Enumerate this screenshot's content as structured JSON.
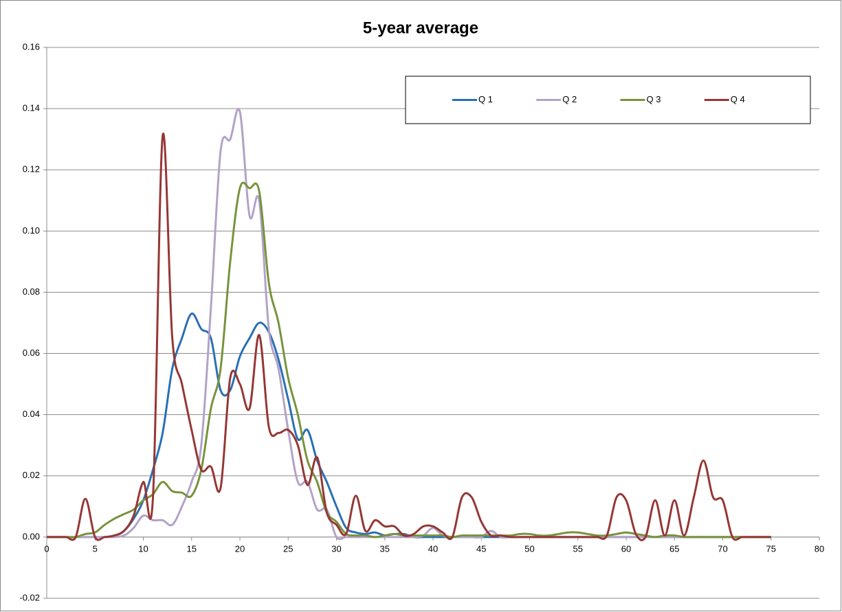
{
  "chart_data": {
    "type": "line",
    "title": "5-year average",
    "x": [
      0,
      1,
      2,
      3,
      4,
      5,
      6,
      7,
      8,
      9,
      10,
      11,
      12,
      13,
      14,
      15,
      16,
      17,
      18,
      19,
      20,
      21,
      22,
      23,
      24,
      25,
      26,
      27,
      28,
      29,
      30,
      31,
      32,
      33,
      34,
      35,
      36,
      37,
      38,
      39,
      40,
      41,
      42,
      43,
      44,
      45,
      46,
      47,
      48,
      49,
      50,
      51,
      52,
      53,
      54,
      55,
      56,
      57,
      58,
      59,
      60,
      61,
      62,
      63,
      64,
      65,
      66,
      67,
      68,
      69,
      70,
      71,
      72,
      73,
      74,
      75
    ],
    "series": [
      {
        "name": "Q 1",
        "color": "#2a6fb5",
        "values": [
          0,
          0,
          0,
          0,
          0,
          0,
          0,
          0.0005,
          0.002,
          0.006,
          0.012,
          0.022,
          0.034,
          0.055,
          0.065,
          0.073,
          0.068,
          0.065,
          0.048,
          0.048,
          0.059,
          0.065,
          0.07,
          0.067,
          0.058,
          0.045,
          0.032,
          0.035,
          0.025,
          0.018,
          0.01,
          0.003,
          0.0015,
          0.001,
          0.0015,
          0.0005,
          0.001,
          0.001,
          0,
          0,
          0,
          0,
          0,
          0,
          0,
          0,
          0,
          0,
          0,
          0,
          0,
          0,
          0,
          0,
          0,
          0,
          0,
          0,
          0,
          0,
          0,
          0,
          0,
          0,
          0,
          0,
          0,
          0,
          0,
          0,
          0,
          0,
          0,
          0,
          0,
          0
        ]
      },
      {
        "name": "Q 2",
        "color": "#b3a2c7",
        "values": [
          0,
          0,
          0,
          0,
          0,
          0,
          0,
          0,
          0.0005,
          0.003,
          0.007,
          0.0055,
          0.0055,
          0.004,
          0.01,
          0.018,
          0.03,
          0.075,
          0.126,
          0.13,
          0.139,
          0.105,
          0.11,
          0.068,
          0.055,
          0.035,
          0.018,
          0.018,
          0.009,
          0.009,
          0,
          0,
          0,
          0,
          0,
          0,
          0,
          0,
          0,
          0.0005,
          0.003,
          0.0005,
          0,
          0,
          0,
          0,
          0.002,
          0,
          0,
          0,
          0,
          0,
          0,
          0,
          0,
          0,
          0,
          0,
          0,
          0,
          0,
          0,
          0,
          0,
          0,
          0,
          0,
          0,
          0,
          0,
          0,
          0,
          0,
          0,
          0,
          0
        ]
      },
      {
        "name": "Q 3",
        "color": "#77933c",
        "values": [
          0,
          0,
          0,
          0,
          0.001,
          0.0015,
          0.004,
          0.006,
          0.0075,
          0.009,
          0.012,
          0.014,
          0.018,
          0.015,
          0.0145,
          0.0135,
          0.022,
          0.042,
          0.055,
          0.09,
          0.114,
          0.114,
          0.113,
          0.083,
          0.07,
          0.052,
          0.04,
          0.025,
          0.018,
          0.008,
          0.005,
          0.001,
          0.0005,
          0.0005,
          0,
          0.0005,
          0.001,
          0.0005,
          0.0005,
          0.0005,
          0.0005,
          0.0005,
          0,
          0.0005,
          0.0005,
          0.0005,
          0.0005,
          0.0005,
          0.0005,
          0.001,
          0.001,
          0.0005,
          0.0005,
          0.001,
          0.0015,
          0.0015,
          0.001,
          0.0005,
          0.0005,
          0.001,
          0.0015,
          0.001,
          0.0005,
          0,
          0.0005,
          0.0005,
          0,
          0,
          0,
          0,
          0,
          0,
          0,
          0,
          0,
          0
        ]
      },
      {
        "name": "Q 4",
        "color": "#953735",
        "values": [
          0,
          0,
          0,
          0,
          0.0125,
          0,
          0,
          0.0005,
          0.002,
          0.007,
          0.018,
          0.013,
          0.131,
          0.065,
          0.05,
          0.035,
          0.022,
          0.023,
          0.016,
          0.052,
          0.05,
          0.042,
          0.066,
          0.036,
          0.034,
          0.035,
          0.03,
          0.017,
          0.026,
          0.008,
          0.004,
          0.001,
          0.0135,
          0.002,
          0.0055,
          0.0035,
          0.0035,
          0.0005,
          0.001,
          0.0035,
          0.0035,
          0.0015,
          0,
          0.013,
          0.013,
          0.005,
          0.0005,
          0.0005,
          0,
          0,
          0,
          0,
          0,
          0,
          0,
          0,
          0,
          0,
          0.0005,
          0.013,
          0.012,
          0.001,
          0,
          0.012,
          0.0005,
          0.012,
          0.0005,
          0.013,
          0.025,
          0.013,
          0.012,
          0,
          0,
          0,
          0,
          0
        ]
      }
    ],
    "xlim": [
      0,
      80
    ],
    "xticks": [
      0,
      5,
      10,
      15,
      20,
      25,
      30,
      35,
      40,
      45,
      50,
      55,
      60,
      65,
      70,
      75,
      80
    ],
    "ylim": [
      -0.02,
      0.16
    ],
    "yticks": [
      {
        "value": -0.02,
        "label": "-0.02"
      },
      {
        "value": 0,
        "label": "0.00"
      },
      {
        "value": 0.02,
        "label": "0.02"
      },
      {
        "value": 0.04,
        "label": "0.04"
      },
      {
        "value": 0.06,
        "label": "0.06"
      },
      {
        "value": 0.08,
        "label": "0.08"
      },
      {
        "value": 0.1,
        "label": "0.10"
      },
      {
        "value": 0.12,
        "label": "0.12"
      },
      {
        "value": 0.14,
        "label": "0.14"
      },
      {
        "value": 0.16,
        "label": "0.16"
      }
    ],
    "grid": true,
    "legend": "top-right"
  }
}
